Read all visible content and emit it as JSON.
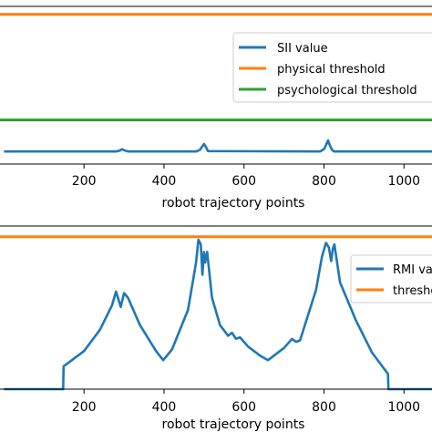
{
  "chart_data": [
    {
      "type": "line",
      "xlabel": "robot trajectory points",
      "ylabel": "",
      "xlim": [
        -10,
        1070
      ],
      "ylim": [
        0,
        100
      ],
      "x_ticks": [
        200,
        400,
        600,
        800,
        1000
      ],
      "grid": false,
      "legend_position": "upper-right",
      "series": [
        {
          "name": "SII value",
          "color": "#1f77b4",
          "role": "data",
          "x": [
            0,
            280,
            290,
            295,
            300,
            310,
            480,
            490,
            495,
            500,
            505,
            510,
            790,
            800,
            805,
            810,
            815,
            820,
            825,
            1070
          ],
          "y": [
            8,
            8,
            8.6,
            9.4,
            8.8,
            8,
            8,
            9,
            10.8,
            12.7,
            10.8,
            8.2,
            8,
            9.5,
            12,
            15,
            11.5,
            9,
            8,
            8
          ]
        },
        {
          "name": "physical threshold",
          "color": "#ff7f0e",
          "role": "threshold",
          "x": [
            -10,
            1070
          ],
          "y": [
            95,
            95
          ]
        },
        {
          "name": "psychological threshold",
          "color": "#2ca02c",
          "role": "threshold",
          "x": [
            -10,
            1070
          ],
          "y": [
            28,
            28
          ]
        }
      ]
    },
    {
      "type": "line",
      "xlabel": "robot trajectory points",
      "ylabel": "",
      "xlim": [
        -10,
        1070
      ],
      "ylim": [
        0,
        1.07
      ],
      "x_ticks": [
        200,
        400,
        600,
        800,
        1000
      ],
      "grid": false,
      "legend_position": "upper-right",
      "series": [
        {
          "name": "RMI value",
          "color": "#1f77b4",
          "role": "data",
          "x": [
            0,
            148,
            149,
            200,
            240,
            270,
            280,
            292,
            300,
            310,
            340,
            380,
            398,
            420,
            460,
            480,
            486,
            492,
            496,
            500,
            503,
            508,
            520,
            540,
            560,
            570,
            580,
            590,
            610,
            640,
            660,
            700,
            720,
            730,
            740,
            780,
            795,
            805,
            812,
            818,
            822,
            826,
            840,
            880,
            920,
            960,
            961,
            1070
          ],
          "y": [
            0,
            0,
            0.15,
            0.25,
            0.39,
            0.55,
            0.64,
            0.54,
            0.63,
            0.6,
            0.42,
            0.25,
            0.19,
            0.26,
            0.52,
            0.83,
            0.98,
            0.95,
            0.75,
            0.9,
            0.83,
            0.9,
            0.6,
            0.42,
            0.35,
            0.37,
            0.33,
            0.34,
            0.28,
            0.22,
            0.19,
            0.27,
            0.33,
            0.31,
            0.32,
            0.65,
            0.87,
            0.96,
            0.93,
            0.84,
            0.92,
            0.95,
            0.7,
            0.45,
            0.24,
            0.1,
            0,
            0
          ]
        },
        {
          "name": "threshold",
          "color": "#ff7f0e",
          "role": "threshold",
          "x": [
            -10,
            1070
          ],
          "y": [
            1,
            1
          ]
        }
      ]
    }
  ]
}
